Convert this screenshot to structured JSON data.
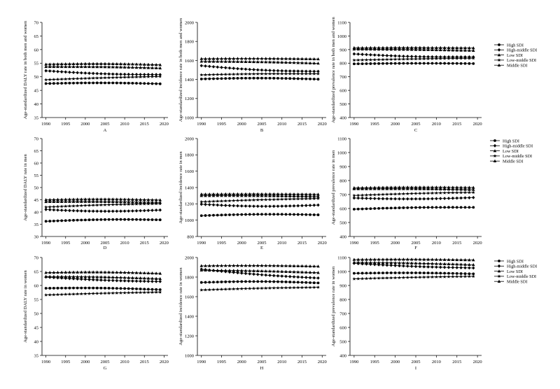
{
  "legend_labels": [
    "High SDI",
    "High-middle SDI",
    "Low SDI",
    "Low-middle SDI",
    "Middle SDI"
  ],
  "chart_data": [
    {
      "type": "line",
      "panel": "A",
      "ylabel": "Age-standardized DALY rate in both men and women",
      "ylim": [
        35,
        70
      ],
      "yticks": [
        35,
        40,
        45,
        50,
        55,
        60,
        65,
        70
      ],
      "xlim": [
        1989,
        2021
      ],
      "xticks": [
        1990,
        1995,
        2000,
        2005,
        2010,
        2015,
        2020
      ],
      "x": [
        1990,
        1991,
        1992,
        1993,
        1994,
        1995,
        1996,
        1997,
        1998,
        1999,
        2000,
        2001,
        2002,
        2003,
        2004,
        2005,
        2006,
        2007,
        2008,
        2009,
        2010,
        2011,
        2012,
        2013,
        2014,
        2015,
        2016,
        2017,
        2018,
        2019
      ],
      "series": [
        {
          "name": "High SDI",
          "start": 47.5,
          "end": 47.4,
          "bump": 0.3,
          "marker": "circle"
        },
        {
          "name": "High-middle SDI",
          "start": 52.2,
          "end": 50.8,
          "bump": -0.4,
          "marker": "diamond"
        },
        {
          "name": "Low SDI",
          "start": 54.6,
          "end": 54.4,
          "bump": 0.3,
          "marker": "triangle"
        },
        {
          "name": "Low-middle SDI",
          "start": 48.9,
          "end": 50.1,
          "bump": 0.1,
          "marker": "star"
        },
        {
          "name": "Middle SDI",
          "start": 53.7,
          "end": 53.2,
          "bump": 0.2,
          "marker": "triangle"
        }
      ]
    },
    {
      "type": "line",
      "panel": "B",
      "ylabel": "Age-standardized incidence rate in both men and women",
      "ylim": [
        1000,
        2000
      ],
      "yticks": [
        1000,
        1200,
        1400,
        1600,
        1800,
        2000
      ],
      "xlim": [
        1989,
        2021
      ],
      "xticks": [
        1990,
        1995,
        2000,
        2005,
        2010,
        2015,
        2020
      ],
      "x": [
        1990,
        1991,
        1992,
        1993,
        1994,
        1995,
        1996,
        1997,
        1998,
        1999,
        2000,
        2001,
        2002,
        2003,
        2004,
        2005,
        2006,
        2007,
        2008,
        2009,
        2010,
        2011,
        2012,
        2013,
        2014,
        2015,
        2016,
        2017,
        2018,
        2019
      ],
      "series": [
        {
          "name": "High SDI",
          "start": 1405,
          "end": 1403,
          "bump": 10,
          "marker": "circle"
        },
        {
          "name": "High-middle SDI",
          "start": 1545,
          "end": 1485,
          "bump": -15,
          "marker": "diamond"
        },
        {
          "name": "Low SDI",
          "start": 1618,
          "end": 1615,
          "bump": 4,
          "marker": "triangle"
        },
        {
          "name": "Low-middle SDI",
          "start": 1448,
          "end": 1460,
          "bump": 5,
          "marker": "star"
        },
        {
          "name": "Middle SDI",
          "start": 1590,
          "end": 1570,
          "bump": 5,
          "marker": "triangle"
        }
      ]
    },
    {
      "type": "line",
      "panel": "C",
      "ylabel": "Age-standardized prevalence rate in both men and women",
      "ylim": [
        400,
        1100
      ],
      "yticks": [
        400,
        500,
        600,
        700,
        800,
        900,
        1000,
        1100
      ],
      "xlim": [
        1989,
        2021
      ],
      "xticks": [
        1990,
        1995,
        2000,
        2005,
        2010,
        2015,
        2020
      ],
      "x": [
        1990,
        1991,
        1992,
        1993,
        1994,
        1995,
        1996,
        1997,
        1998,
        1999,
        2000,
        2001,
        2002,
        2003,
        2004,
        2005,
        2006,
        2007,
        2008,
        2009,
        2010,
        2011,
        2012,
        2013,
        2014,
        2015,
        2016,
        2017,
        2018,
        2019
      ],
      "series": [
        {
          "name": "High SDI",
          "start": 795,
          "end": 797,
          "bump": 3,
          "marker": "circle"
        },
        {
          "name": "High-middle SDI",
          "start": 868,
          "end": 846,
          "bump": -8,
          "marker": "diamond"
        },
        {
          "name": "Low SDI",
          "start": 913,
          "end": 912,
          "bump": 2,
          "marker": "triangle"
        },
        {
          "name": "Low-middle SDI",
          "start": 822,
          "end": 836,
          "bump": 2,
          "marker": "star"
        },
        {
          "name": "Middle SDI",
          "start": 903,
          "end": 893,
          "bump": 2,
          "marker": "triangle"
        }
      ]
    },
    {
      "type": "line",
      "panel": "D",
      "ylabel": "Age-standardized DALY rate in men",
      "ylim": [
        30,
        70
      ],
      "yticks": [
        30,
        35,
        40,
        45,
        50,
        55,
        60,
        65,
        70
      ],
      "xlim": [
        1989,
        2021
      ],
      "xticks": [
        1990,
        1995,
        2000,
        2005,
        2010,
        2015,
        2020
      ],
      "x": [
        1990,
        1991,
        1992,
        1993,
        1994,
        1995,
        1996,
        1997,
        1998,
        1999,
        2000,
        2001,
        2002,
        2003,
        2004,
        2005,
        2006,
        2007,
        2008,
        2009,
        2010,
        2011,
        2012,
        2013,
        2014,
        2015,
        2016,
        2017,
        2018,
        2019
      ],
      "series": [
        {
          "name": "High SDI",
          "start": 36.2,
          "end": 36.8,
          "bump": 0.4,
          "marker": "circle"
        },
        {
          "name": "High-middle SDI",
          "start": 41.0,
          "end": 40.8,
          "bump": -0.6,
          "marker": "diamond"
        },
        {
          "name": "Low SDI",
          "start": 45.0,
          "end": 44.9,
          "bump": 0.3,
          "marker": "triangle"
        },
        {
          "name": "Low-middle SDI",
          "start": 42.0,
          "end": 43.4,
          "bump": 0.2,
          "marker": "star"
        },
        {
          "name": "Middle SDI",
          "start": 44.2,
          "end": 43.9,
          "bump": 0.2,
          "marker": "triangle"
        }
      ]
    },
    {
      "type": "line",
      "panel": "E",
      "ylabel": "Age-standardized incidence rate in men",
      "ylim": [
        800,
        2000
      ],
      "yticks": [
        800,
        1000,
        1200,
        1400,
        1600,
        1800,
        2000
      ],
      "xlim": [
        1989,
        2021
      ],
      "xticks": [
        1990,
        1995,
        2000,
        2005,
        2010,
        2015,
        2020
      ],
      "x": [
        1990,
        1991,
        1992,
        1993,
        1994,
        1995,
        1996,
        1997,
        1998,
        1999,
        2000,
        2001,
        2002,
        2003,
        2004,
        2005,
        2006,
        2007,
        2008,
        2009,
        2010,
        2011,
        2012,
        2013,
        2014,
        2015,
        2016,
        2017,
        2018,
        2019
      ],
      "series": [
        {
          "name": "High SDI",
          "start": 1055,
          "end": 1065,
          "bump": 12,
          "marker": "circle"
        },
        {
          "name": "High-middle SDI",
          "start": 1195,
          "end": 1185,
          "bump": -20,
          "marker": "diamond"
        },
        {
          "name": "Low SDI",
          "start": 1318,
          "end": 1316,
          "bump": 4,
          "marker": "triangle"
        },
        {
          "name": "Low-middle SDI",
          "start": 1225,
          "end": 1265,
          "bump": 4,
          "marker": "star"
        },
        {
          "name": "Middle SDI",
          "start": 1300,
          "end": 1290,
          "bump": 4,
          "marker": "triangle"
        }
      ]
    },
    {
      "type": "line",
      "panel": "F",
      "ylabel": "Age-standardized prevalence rate in men",
      "ylim": [
        400,
        1100
      ],
      "yticks": [
        400,
        500,
        600,
        700,
        800,
        900,
        1000,
        1100
      ],
      "xlim": [
        1989,
        2021
      ],
      "xticks": [
        1990,
        1995,
        2000,
        2005,
        2010,
        2015,
        2020
      ],
      "x": [
        1990,
        1991,
        1992,
        1993,
        1994,
        1995,
        1996,
        1997,
        1998,
        1999,
        2000,
        2001,
        2002,
        2003,
        2004,
        2005,
        2006,
        2007,
        2008,
        2009,
        2010,
        2011,
        2012,
        2013,
        2014,
        2015,
        2016,
        2017,
        2018,
        2019
      ],
      "series": [
        {
          "name": "High SDI",
          "start": 595,
          "end": 608,
          "bump": 5,
          "marker": "circle"
        },
        {
          "name": "High-middle SDI",
          "start": 675,
          "end": 678,
          "bump": -8,
          "marker": "diamond"
        },
        {
          "name": "Low SDI",
          "start": 748,
          "end": 750,
          "bump": 3,
          "marker": "triangle"
        },
        {
          "name": "Low-middle SDI",
          "start": 693,
          "end": 715,
          "bump": 3,
          "marker": "star"
        },
        {
          "name": "Middle SDI",
          "start": 740,
          "end": 735,
          "bump": 3,
          "marker": "triangle"
        }
      ]
    },
    {
      "type": "line",
      "panel": "G",
      "ylabel": "Age-standardized DALY rate in women",
      "ylim": [
        35,
        70
      ],
      "yticks": [
        35,
        40,
        45,
        50,
        55,
        60,
        65,
        70
      ],
      "xlim": [
        1989,
        2021
      ],
      "xticks": [
        1990,
        1995,
        2000,
        2005,
        2010,
        2015,
        2020
      ],
      "x": [
        1990,
        1991,
        1992,
        1993,
        1994,
        1995,
        1996,
        1997,
        1998,
        1999,
        2000,
        2001,
        2002,
        2003,
        2004,
        2005,
        2006,
        2007,
        2008,
        2009,
        2010,
        2011,
        2012,
        2013,
        2014,
        2015,
        2016,
        2017,
        2018,
        2019
      ],
      "series": [
        {
          "name": "High SDI",
          "start": 59.0,
          "end": 58.5,
          "bump": 0.3,
          "marker": "circle"
        },
        {
          "name": "High-middle SDI",
          "start": 63.0,
          "end": 61.4,
          "bump": -0.3,
          "marker": "diamond"
        },
        {
          "name": "Low SDI",
          "start": 64.6,
          "end": 64.3,
          "bump": 0.3,
          "marker": "triangle"
        },
        {
          "name": "Low-middle SDI",
          "start": 56.6,
          "end": 57.6,
          "bump": 0.1,
          "marker": "star"
        },
        {
          "name": "Middle SDI",
          "start": 63.2,
          "end": 62.4,
          "bump": 0.2,
          "marker": "triangle"
        }
      ]
    },
    {
      "type": "line",
      "panel": "H",
      "ylabel": "Age-standardized incidence rate in women",
      "ylim": [
        1000,
        2000
      ],
      "yticks": [
        1000,
        1200,
        1400,
        1600,
        1800,
        2000
      ],
      "xlim": [
        1989,
        2021
      ],
      "xticks": [
        1990,
        1995,
        2000,
        2005,
        2010,
        2015,
        2020
      ],
      "x": [
        1990,
        1991,
        1992,
        1993,
        1994,
        1995,
        1996,
        1997,
        1998,
        1999,
        2000,
        2001,
        2002,
        2003,
        2004,
        2005,
        2006,
        2007,
        2008,
        2009,
        2010,
        2011,
        2012,
        2013,
        2014,
        2015,
        2016,
        2017,
        2018,
        2019
      ],
      "series": [
        {
          "name": "High SDI",
          "start": 1745,
          "end": 1740,
          "bump": 12,
          "marker": "circle"
        },
        {
          "name": "High-middle SDI",
          "start": 1880,
          "end": 1790,
          "bump": -10,
          "marker": "diamond"
        },
        {
          "name": "Low SDI",
          "start": 1915,
          "end": 1910,
          "bump": 5,
          "marker": "triangle"
        },
        {
          "name": "Low-middle SDI",
          "start": 1668,
          "end": 1695,
          "bump": 4,
          "marker": "star"
        },
        {
          "name": "Middle SDI",
          "start": 1870,
          "end": 1845,
          "bump": 5,
          "marker": "triangle"
        }
      ]
    },
    {
      "type": "line",
      "panel": "I",
      "ylabel": "Age-standardized prevalence rate in women",
      "ylim": [
        400,
        1100
      ],
      "yticks": [
        400,
        500,
        600,
        700,
        800,
        900,
        1000,
        1100
      ],
      "xlim": [
        1989,
        2021
      ],
      "xticks": [
        1990,
        1995,
        2000,
        2005,
        2010,
        2015,
        2020
      ],
      "x": [
        1990,
        1991,
        1992,
        1993,
        1994,
        1995,
        1996,
        1997,
        1998,
        1999,
        2000,
        2001,
        2002,
        2003,
        2004,
        2005,
        2006,
        2007,
        2008,
        2009,
        2010,
        2011,
        2012,
        2013,
        2014,
        2015,
        2016,
        2017,
        2018,
        2019
      ],
      "series": [
        {
          "name": "High SDI",
          "start": 987,
          "end": 983,
          "bump": 5,
          "marker": "circle"
        },
        {
          "name": "High-middle SDI",
          "start": 1058,
          "end": 1025,
          "bump": -5,
          "marker": "diamond"
        },
        {
          "name": "Low SDI",
          "start": 1085,
          "end": 1082,
          "bump": 3,
          "marker": "triangle"
        },
        {
          "name": "Low-middle SDI",
          "start": 947,
          "end": 965,
          "bump": 2,
          "marker": "star"
        },
        {
          "name": "Middle SDI",
          "start": 1065,
          "end": 1048,
          "bump": 3,
          "marker": "triangle"
        }
      ]
    }
  ]
}
